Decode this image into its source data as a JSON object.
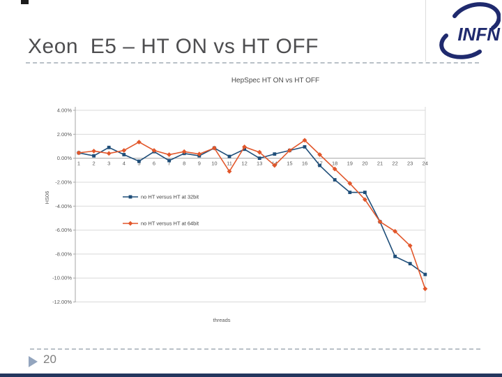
{
  "slide": {
    "title": "Xeon  E5 – HT ON vs HT OFF",
    "page_number": "20",
    "logo_text": "INFN"
  },
  "colors": {
    "series_32bit": "#1f4e79",
    "series_64bit": "#e2572b",
    "gridline": "#d9d9d9",
    "axis": "#a6a6a6",
    "chart_text": "#595959",
    "logo_navy": "#1f2a6e",
    "bottom_bar": "#24365e"
  },
  "chart_data": {
    "type": "line",
    "title": "HepSpec HT ON vs HT OFF",
    "xlabel": "threads",
    "ylabel": "HS06",
    "ylim": [
      -12,
      4
    ],
    "yticks": [
      "4.00%",
      "2.00%",
      "0.00%",
      "-2.00%",
      "-4.00%",
      "-6.00%",
      "-8.00%",
      "-10.00%",
      "-12.00%"
    ],
    "ytick_values": [
      4,
      2,
      0,
      -2,
      -4,
      -6,
      -8,
      -10,
      -12
    ],
    "grid": true,
    "legend_position": "inside-left",
    "x": [
      1,
      2,
      3,
      4,
      5,
      6,
      7,
      8,
      9,
      10,
      11,
      12,
      13,
      14,
      15,
      16,
      17,
      18,
      19,
      20,
      21,
      22,
      23,
      24
    ],
    "series": [
      {
        "name": "no HT versus HT at 32bit",
        "marker": "square",
        "color": "#1f4e79",
        "values": [
          0.45,
          0.2,
          0.9,
          0.3,
          -0.25,
          0.55,
          -0.2,
          0.4,
          0.2,
          0.85,
          0.15,
          0.75,
          0.0,
          0.35,
          0.65,
          0.95,
          -0.6,
          -1.8,
          -2.85,
          -2.85,
          -5.3,
          -8.2,
          -8.8,
          -9.7
        ]
      },
      {
        "name": "no HT versus HT at 64bit",
        "marker": "diamond",
        "color": "#e2572b",
        "values": [
          0.45,
          0.6,
          0.4,
          0.65,
          1.35,
          0.65,
          0.3,
          0.55,
          0.35,
          0.85,
          -1.1,
          0.95,
          0.5,
          -0.6,
          0.65,
          1.5,
          0.3,
          -0.9,
          -2.1,
          -3.45,
          -5.3,
          -6.1,
          -7.3,
          -10.9
        ]
      }
    ]
  }
}
